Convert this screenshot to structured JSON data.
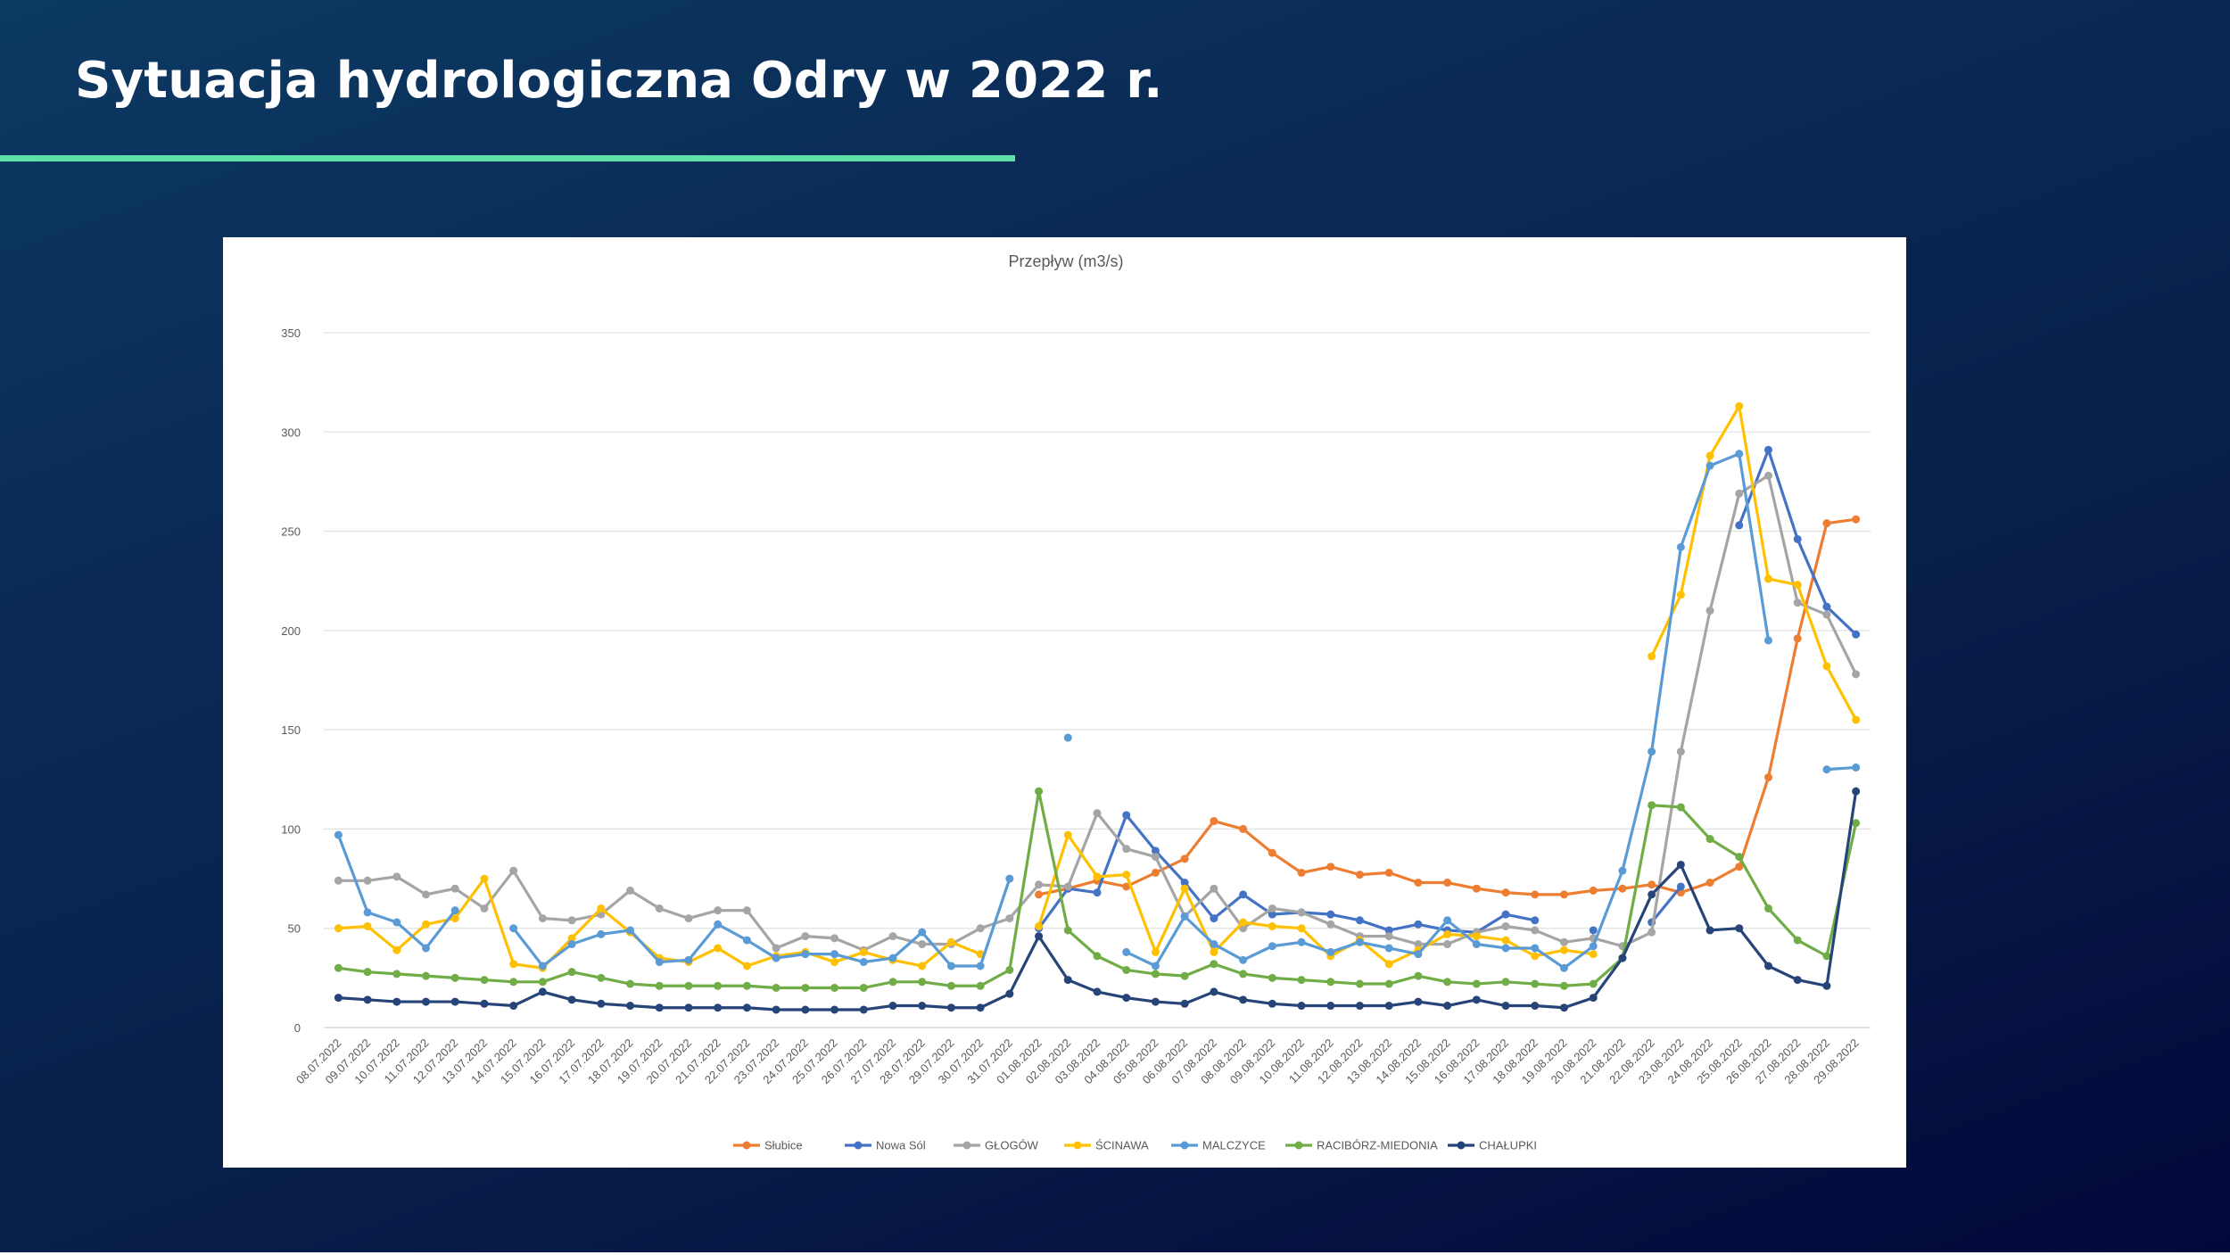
{
  "page": {
    "title": "Sytuacja hydrologiczna Odry w 2022 r."
  },
  "chart_data": {
    "type": "line",
    "title": "Przepływ (m3/s)",
    "xlabel": "",
    "ylabel": "",
    "ylim": [
      0,
      350
    ],
    "yticks": [
      0,
      50,
      100,
      150,
      200,
      250,
      300,
      350
    ],
    "grid": true,
    "legend_position": "bottom",
    "categories": [
      "08.07.2022",
      "09.07.2022",
      "10.07.2022",
      "11.07.2022",
      "12.07.2022",
      "13.07.2022",
      "14.07.2022",
      "15.07.2022",
      "16.07.2022",
      "17.07.2022",
      "18.07.2022",
      "19.07.2022",
      "20.07.2022",
      "21.07.2022",
      "22.07.2022",
      "23.07.2022",
      "24.07.2022",
      "25.07.2022",
      "26.07.2022",
      "27.07.2022",
      "28.07.2022",
      "29.07.2022",
      "30.07.2022",
      "31.07.2022",
      "01.08.2022",
      "02.08.2022",
      "03.08.2022",
      "04.08.2022",
      "05.08.2022",
      "06.08.2022",
      "07.08.2022",
      "08.08.2022",
      "09.08.2022",
      "10.08.2022",
      "11.08.2022",
      "12.08.2022",
      "13.08.2022",
      "14.08.2022",
      "15.08.2022",
      "16.08.2022",
      "17.08.2022",
      "18.08.2022",
      "19.08.2022",
      "20.08.2022",
      "21.08.2022",
      "22.08.2022",
      "23.08.2022",
      "24.08.2022",
      "25.08.2022",
      "26.08.2022",
      "27.08.2022",
      "28.08.2022",
      "29.08.2022"
    ],
    "series": [
      {
        "name": "Słubice",
        "color": "#ed7d31",
        "values": [
          null,
          null,
          null,
          null,
          null,
          null,
          null,
          null,
          null,
          null,
          null,
          null,
          null,
          null,
          null,
          null,
          null,
          null,
          null,
          null,
          null,
          null,
          null,
          null,
          67,
          70,
          74,
          71,
          78,
          85,
          104,
          100,
          88,
          78,
          81,
          77,
          78,
          73,
          73,
          70,
          68,
          67,
          67,
          69,
          70,
          72,
          68,
          73,
          81,
          126,
          196,
          254,
          256
        ]
      },
      {
        "name": "Nowa Sól",
        "color": "#4472c4",
        "values": [
          null,
          null,
          null,
          null,
          null,
          null,
          null,
          null,
          null,
          null,
          null,
          null,
          null,
          null,
          null,
          null,
          null,
          null,
          null,
          null,
          null,
          null,
          null,
          null,
          50,
          70,
          68,
          107,
          89,
          73,
          55,
          67,
          57,
          58,
          57,
          54,
          49,
          52,
          49,
          48,
          57,
          54,
          null,
          49,
          null,
          53,
          71,
          null,
          253,
          291,
          246,
          212,
          198
        ]
      },
      {
        "name": "GŁOGÓW",
        "color": "#a5a5a5",
        "values": [
          74,
          74,
          76,
          67,
          70,
          60,
          79,
          55,
          54,
          57,
          69,
          60,
          55,
          59,
          59,
          40,
          46,
          45,
          39,
          46,
          42,
          42,
          50,
          55,
          72,
          71,
          108,
          90,
          86,
          56,
          70,
          50,
          60,
          58,
          52,
          46,
          46,
          42,
          42,
          48,
          51,
          49,
          43,
          45,
          41,
          48,
          139,
          210,
          269,
          278,
          214,
          208,
          178
        ]
      },
      {
        "name": "ŚCINAWA",
        "color": "#ffc000",
        "values": [
          50,
          51,
          39,
          52,
          55,
          75,
          32,
          30,
          45,
          60,
          48,
          35,
          33,
          40,
          31,
          36,
          38,
          33,
          38,
          34,
          31,
          43,
          37,
          null,
          51,
          97,
          76,
          77,
          38,
          70,
          38,
          53,
          51,
          50,
          36,
          44,
          32,
          39,
          47,
          46,
          44,
          36,
          39,
          37,
          null,
          187,
          218,
          288,
          313,
          226,
          223,
          182,
          155
        ]
      },
      {
        "name": "MALCZYCE",
        "color": "#5b9bd5",
        "values": [
          97,
          58,
          53,
          40,
          59,
          null,
          50,
          31,
          42,
          47,
          49,
          33,
          34,
          52,
          44,
          35,
          37,
          37,
          33,
          35,
          48,
          31,
          31,
          75,
          null,
          146,
          null,
          38,
          31,
          56,
          42,
          34,
          41,
          43,
          38,
          43,
          40,
          37,
          54,
          42,
          40,
          40,
          30,
          41,
          79,
          139,
          242,
          283,
          289,
          195,
          null,
          130,
          131
        ]
      },
      {
        "name": "RACIBÓRZ-MIEDONIA",
        "color": "#70ad47",
        "values": [
          30,
          28,
          27,
          26,
          25,
          24,
          23,
          23,
          28,
          25,
          22,
          21,
          21,
          21,
          21,
          20,
          20,
          20,
          20,
          23,
          23,
          21,
          21,
          29,
          119,
          49,
          36,
          29,
          27,
          26,
          32,
          27,
          25,
          24,
          23,
          22,
          22,
          26,
          23,
          22,
          23,
          22,
          21,
          22,
          35,
          112,
          111,
          95,
          86,
          60,
          44,
          36,
          103
        ]
      },
      {
        "name": "CHAŁUPKI",
        "color": "#264478",
        "values": [
          15,
          14,
          13,
          13,
          13,
          12,
          11,
          18,
          14,
          12,
          11,
          10,
          10,
          10,
          10,
          9,
          9,
          9,
          9,
          11,
          11,
          10,
          10,
          17,
          46,
          24,
          18,
          15,
          13,
          12,
          18,
          14,
          12,
          11,
          11,
          11,
          11,
          13,
          11,
          14,
          11,
          11,
          10,
          15,
          35,
          67,
          82,
          49,
          50,
          31,
          24,
          21,
          119
        ]
      }
    ]
  }
}
